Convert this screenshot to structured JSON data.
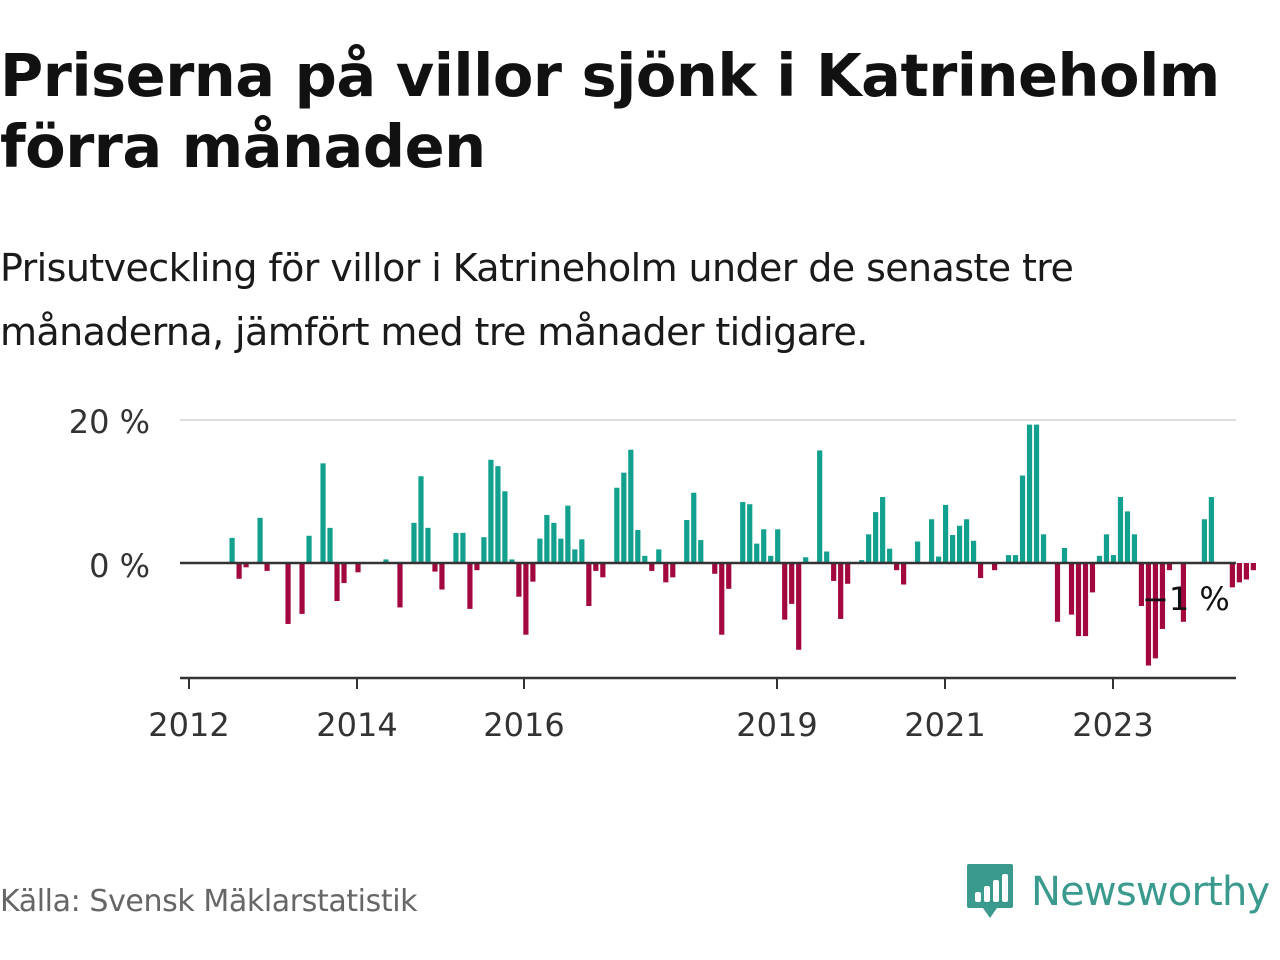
{
  "title": "Priserna på villor sjönk i Katrineholm förra månaden",
  "subtitle": "Prisutveckling för villor i Katrineholm under de senaste tre månaderna, jämfört med tre månader tidigare.",
  "source": "Källa: Svensk Mäklarstatistik",
  "brand": "Newsworthy",
  "colors": {
    "positive": "#12a08f",
    "negative": "#a3073f",
    "brand": "#3a9a8d",
    "axis": "#333333",
    "grid": "#dddddd",
    "text": "#111111",
    "tick": "#333333"
  },
  "chart_data": {
    "type": "bar",
    "ylabel": "",
    "ylim": [
      -16,
      20
    ],
    "yticks": [
      0,
      20
    ],
    "ytick_labels": [
      "0 %",
      "20 %"
    ],
    "xtick_labels": [
      "2012",
      "2014",
      "2016",
      "2019",
      "2021",
      "2023"
    ],
    "last_value_label": "−1 %",
    "grid": true,
    "values": [
      3.5,
      -2.2,
      -0.6,
      0,
      6.3,
      -1.1,
      0,
      0,
      -8.5,
      0,
      -7.1,
      3.8,
      0,
      13.9,
      4.9,
      -5.3,
      -2.8,
      0,
      -1.3,
      0,
      0,
      0,
      0.5,
      0,
      -6.2,
      0,
      5.6,
      12.1,
      4.9,
      -1.2,
      -3.7,
      0,
      4.2,
      4.2,
      -6.4,
      -1.0,
      3.6,
      14.4,
      13.5,
      10.0,
      0.5,
      -4.7,
      -10.0,
      -2.6,
      3.4,
      6.7,
      5.6,
      3.4,
      8.0,
      1.9,
      3.3,
      -6.0,
      -1.1,
      -2.0,
      0,
      10.5,
      12.6,
      15.8,
      4.6,
      1.0,
      -1.1,
      1.9,
      -2.7,
      -2.0,
      0,
      6.0,
      9.8,
      3.2,
      0,
      -1.5,
      -10.0,
      -3.6,
      0,
      8.5,
      8.2,
      2.7,
      4.7,
      1.0,
      4.7,
      -7.9,
      -5.7,
      -12.1,
      0.8,
      0,
      15.7,
      1.6,
      -2.5,
      -7.8,
      -2.9,
      0,
      0.4,
      4.0,
      7.1,
      9.2,
      2.0,
      -1.0,
      -3.0,
      0,
      3.0,
      0,
      6.1,
      0.9,
      8.1,
      3.9,
      5.2,
      6.1,
      3.1,
      -2.1,
      0,
      -1.0,
      0,
      1.1,
      1.1,
      12.2,
      19.3,
      19.3,
      4.0,
      0,
      -8.2,
      2.1,
      -7.2,
      -10.2,
      -10.2,
      -4.1,
      1.0,
      4.0,
      1.1,
      9.2,
      7.2,
      4.0,
      -6.0,
      -14.3,
      -13.3,
      -9.2,
      -1.0,
      0,
      -8.2,
      0,
      0,
      6.1,
      9.2,
      0,
      0,
      -3.4,
      -2.7,
      -2.3,
      -1.0
    ]
  }
}
